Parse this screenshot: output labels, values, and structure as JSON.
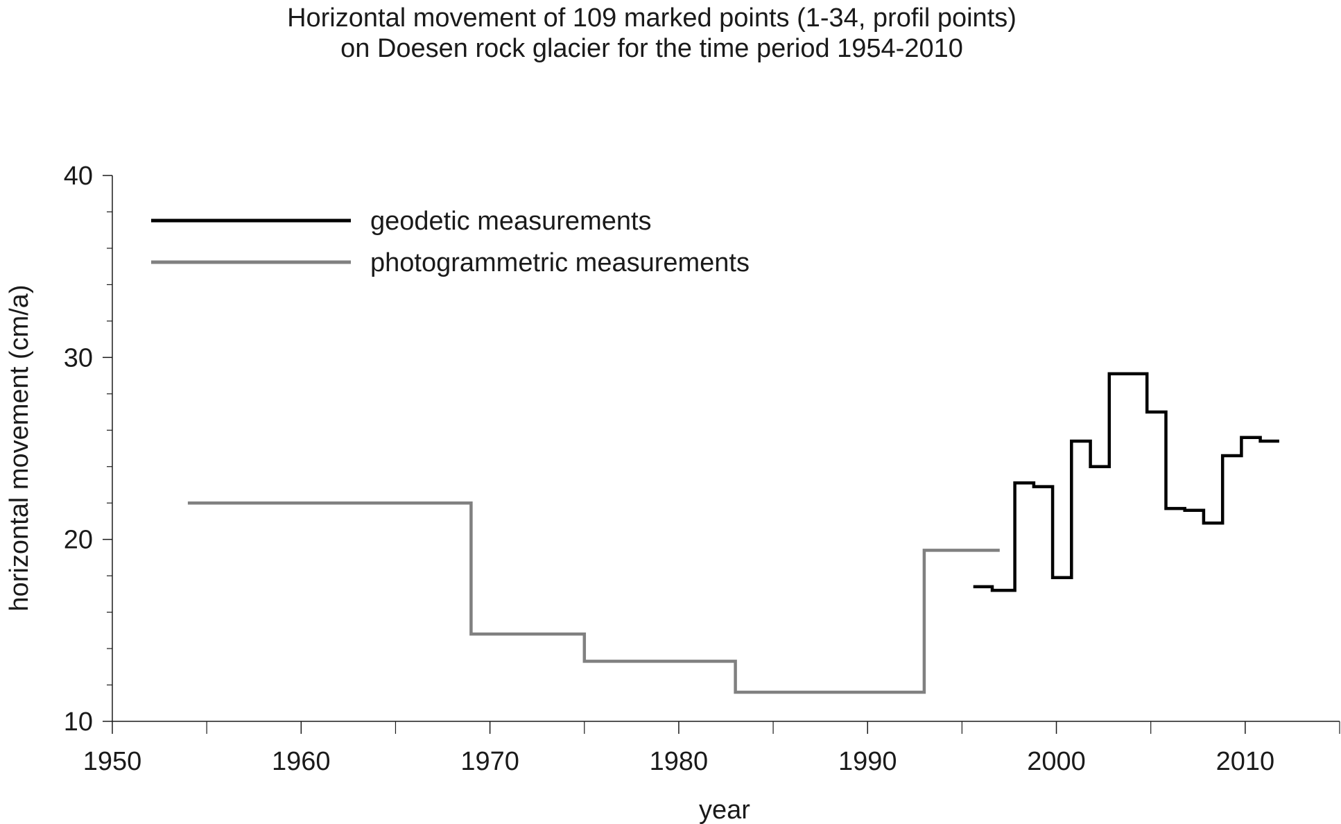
{
  "chart_data": {
    "type": "line",
    "title_lines": [
      "Horizontal movement of 109 marked points (1-34, profil points)",
      "on Doesen rock glacier for the time period 1954-2010"
    ],
    "xlabel": "year",
    "ylabel": "horizontal movement (cm/a)",
    "xlim": [
      1950,
      2015
    ],
    "ylim": [
      10,
      40
    ],
    "x_ticks_major": [
      1950,
      1960,
      1970,
      1980,
      1990,
      2000,
      2010
    ],
    "x_ticks_minor": [
      1955,
      1965,
      1975,
      1985,
      1995,
      2005,
      2015
    ],
    "x_tick_labels": [
      "1950",
      "1960",
      "1970",
      "1980",
      "1990",
      "2000",
      "2010"
    ],
    "y_ticks_major": [
      10,
      20,
      30,
      40
    ],
    "y_ticks_minor": [
      12,
      14,
      16,
      18,
      22,
      24,
      26,
      28,
      32,
      34,
      36,
      38
    ],
    "y_tick_labels": [
      "10",
      "20",
      "30",
      "40"
    ],
    "grid": false,
    "legend_position": "top-left",
    "series": [
      {
        "name": "geodetic measurements",
        "color": "#000000",
        "style": "step",
        "steps": [
          {
            "x0": 1995.6,
            "x1": 1996.6,
            "y": 17.4
          },
          {
            "x0": 1996.6,
            "x1": 1997.8,
            "y": 17.2
          },
          {
            "x0": 1997.8,
            "x1": 1998.8,
            "y": 23.1
          },
          {
            "x0": 1998.8,
            "x1": 1999.8,
            "y": 22.9
          },
          {
            "x0": 1999.8,
            "x1": 2000.8,
            "y": 17.9
          },
          {
            "x0": 2000.8,
            "x1": 2001.8,
            "y": 25.4
          },
          {
            "x0": 2001.8,
            "x1": 2002.8,
            "y": 24.0
          },
          {
            "x0": 2002.8,
            "x1": 2004.8,
            "y": 29.1
          },
          {
            "x0": 2004.8,
            "x1": 2005.8,
            "y": 27.0
          },
          {
            "x0": 2005.8,
            "x1": 2006.8,
            "y": 21.7
          },
          {
            "x0": 2006.8,
            "x1": 2007.8,
            "y": 21.6
          },
          {
            "x0": 2007.8,
            "x1": 2008.8,
            "y": 20.9
          },
          {
            "x0": 2008.8,
            "x1": 2009.8,
            "y": 24.6
          },
          {
            "x0": 2009.8,
            "x1": 2010.8,
            "y": 25.6
          },
          {
            "x0": 2010.8,
            "x1": 2011.8,
            "y": 25.4
          }
        ]
      },
      {
        "name": "photogrammetric measurements",
        "color": "#808080",
        "style": "step",
        "steps": [
          {
            "x0": 1954,
            "x1": 1969,
            "y": 22.0
          },
          {
            "x0": 1969,
            "x1": 1975,
            "y": 14.8
          },
          {
            "x0": 1975,
            "x1": 1983,
            "y": 13.3
          },
          {
            "x0": 1983,
            "x1": 1993,
            "y": 11.6
          },
          {
            "x0": 1993,
            "x1": 1997,
            "y": 19.4
          }
        ]
      }
    ]
  }
}
